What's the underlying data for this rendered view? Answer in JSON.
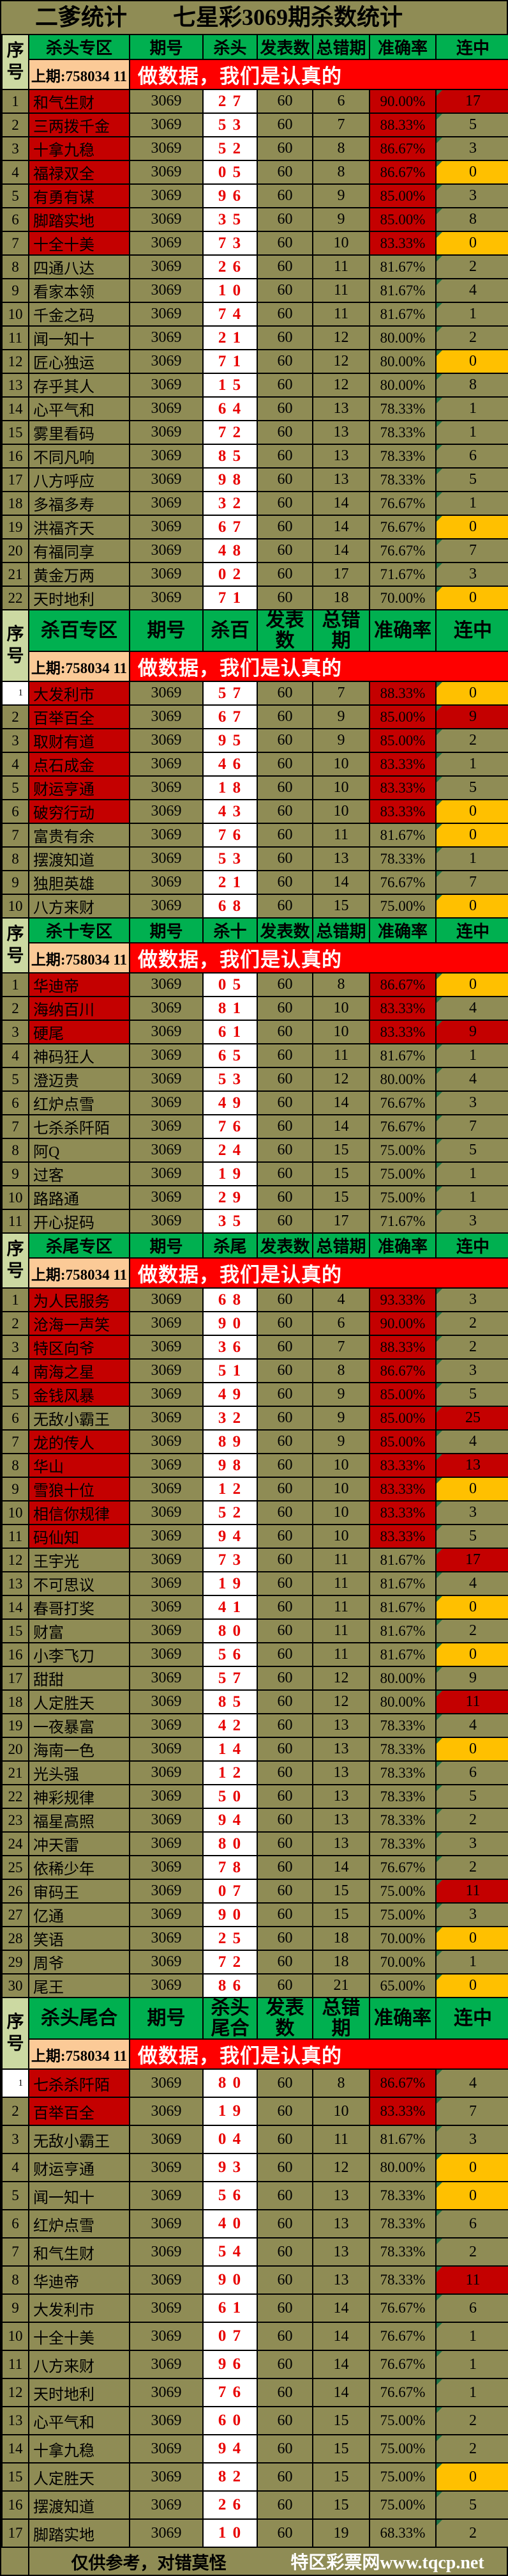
{
  "title": "二爹统计　　七星彩3069期杀数统计",
  "headers": {
    "no": "序\n号",
    "period": "期号",
    "published": "发表数",
    "errors": "总错期",
    "accuracy": "准确率",
    "streak": "连中"
  },
  "prev_draw": "上期:758034 11",
  "banner": "做数据，我们是认真的",
  "row_format": "[no, name, period, kill, published, errors, accuracy, streak, flags] — flags: N=name red bg, A=accuracy red bg, r=streak red bg, y=streak yellow bg, W=white serial cell",
  "colors": {
    "olive": "#8f8c55",
    "green": "#00b050",
    "palegreen": "#ccd9a2",
    "peach": "#fbca97",
    "bannerred": "#fe0000",
    "cellred": "#c40000",
    "yellow": "#ffc000",
    "killred": "#e80000",
    "trigreen": "#1e7145"
  },
  "sections": [
    {
      "zone": "杀头专区",
      "kill": "杀头",
      "rows": [
        [
          1,
          "和气生财",
          "3069",
          "2 7",
          "60",
          "6",
          "90.00%",
          "17",
          "NAr"
        ],
        [
          2,
          "三两拨千金",
          "3069",
          "5 3",
          "60",
          "7",
          "88.33%",
          "5",
          "NA"
        ],
        [
          3,
          "十拿九稳",
          "3069",
          "5 2",
          "60",
          "8",
          "86.67%",
          "3",
          "NA"
        ],
        [
          4,
          "福禄双全",
          "3069",
          "0 5",
          "60",
          "8",
          "86.67%",
          "0",
          "NAy"
        ],
        [
          5,
          "有勇有谋",
          "3069",
          "9 6",
          "60",
          "9",
          "85.00%",
          "3",
          "NA"
        ],
        [
          6,
          "脚踏实地",
          "3069",
          "3 5",
          "60",
          "9",
          "85.00%",
          "8",
          "NA"
        ],
        [
          7,
          "十全十美",
          "3069",
          "7 3",
          "60",
          "10",
          "83.33%",
          "0",
          "NAy"
        ],
        [
          8,
          "四通八达",
          "3069",
          "2 6",
          "60",
          "11",
          "81.67%",
          "2",
          ""
        ],
        [
          9,
          "看家本领",
          "3069",
          "1 0",
          "60",
          "11",
          "81.67%",
          "4",
          ""
        ],
        [
          10,
          "千金之码",
          "3069",
          "7 4",
          "60",
          "11",
          "81.67%",
          "1",
          ""
        ],
        [
          11,
          "闻一知十",
          "3069",
          "2 1",
          "60",
          "12",
          "80.00%",
          "2",
          ""
        ],
        [
          12,
          "匠心独运",
          "3069",
          "7 1",
          "60",
          "12",
          "80.00%",
          "0",
          "y"
        ],
        [
          13,
          "存乎其人",
          "3069",
          "1 5",
          "60",
          "12",
          "80.00%",
          "8",
          ""
        ],
        [
          14,
          "心平气和",
          "3069",
          "6 4",
          "60",
          "13",
          "78.33%",
          "1",
          ""
        ],
        [
          15,
          "雾里看码",
          "3069",
          "7 2",
          "60",
          "13",
          "78.33%",
          "1",
          ""
        ],
        [
          16,
          "不同凡响",
          "3069",
          "8 5",
          "60",
          "13",
          "78.33%",
          "6",
          ""
        ],
        [
          17,
          "八方呼应",
          "3069",
          "9 8",
          "60",
          "13",
          "78.33%",
          "5",
          ""
        ],
        [
          18,
          "多福多寿",
          "3069",
          "3 2",
          "60",
          "14",
          "76.67%",
          "1",
          ""
        ],
        [
          19,
          "洪福齐天",
          "3069",
          "6 7",
          "60",
          "14",
          "76.67%",
          "0",
          "y"
        ],
        [
          20,
          "有福同享",
          "3069",
          "4 8",
          "60",
          "14",
          "76.67%",
          "7",
          ""
        ],
        [
          21,
          "黄金万两",
          "3069",
          "0 2",
          "60",
          "17",
          "71.67%",
          "3",
          ""
        ],
        [
          22,
          "天时地利",
          "3069",
          "7 1",
          "60",
          "18",
          "70.00%",
          "0",
          "y"
        ]
      ]
    },
    {
      "zone": "杀百专区",
      "kill": "杀百",
      "rows": [
        [
          1,
          "大发利市",
          "3069",
          "5 7",
          "60",
          "7",
          "88.33%",
          "0",
          "NAyW"
        ],
        [
          2,
          "百举百全",
          "3069",
          "6 7",
          "60",
          "9",
          "85.00%",
          "9",
          "NAr"
        ],
        [
          3,
          "取财有道",
          "3069",
          "9 5",
          "60",
          "9",
          "85.00%",
          "2",
          "NA"
        ],
        [
          4,
          "点石成金",
          "3069",
          "4 6",
          "60",
          "10",
          "83.33%",
          "1",
          "NA"
        ],
        [
          5,
          "财运亨通",
          "3069",
          "1 8",
          "60",
          "10",
          "83.33%",
          "5",
          "NA"
        ],
        [
          6,
          "破穷行动",
          "3069",
          "4 3",
          "60",
          "10",
          "83.33%",
          "0",
          "NAy"
        ],
        [
          7,
          "富贵有余",
          "3069",
          "7 6",
          "60",
          "11",
          "81.67%",
          "0",
          "y"
        ],
        [
          8,
          "摆渡知道",
          "3069",
          "5 3",
          "60",
          "13",
          "78.33%",
          "1",
          ""
        ],
        [
          9,
          "独胆英雄",
          "3069",
          "2 1",
          "60",
          "14",
          "76.67%",
          "7",
          ""
        ],
        [
          10,
          "八方来财",
          "3069",
          "6 8",
          "60",
          "15",
          "75.00%",
          "0",
          "y"
        ]
      ]
    },
    {
      "zone": "杀十专区",
      "kill": "杀十",
      "rows": [
        [
          1,
          "华迪帝",
          "3069",
          "0 5",
          "60",
          "8",
          "86.67%",
          "0",
          "NAy"
        ],
        [
          2,
          "海纳百川",
          "3069",
          "8 1",
          "60",
          "10",
          "83.33%",
          "4",
          "NA"
        ],
        [
          3,
          "硬尾",
          "3069",
          "6 1",
          "60",
          "10",
          "83.33%",
          "9",
          "NAr"
        ],
        [
          4,
          "神码狂人",
          "3069",
          "6 5",
          "60",
          "11",
          "81.67%",
          "1",
          ""
        ],
        [
          5,
          "澄迈贵",
          "3069",
          "5 3",
          "60",
          "12",
          "80.00%",
          "4",
          ""
        ],
        [
          6,
          "红炉点雪",
          "3069",
          "4 9",
          "60",
          "14",
          "76.67%",
          "3",
          ""
        ],
        [
          7,
          "七杀杀阡陌",
          "3069",
          "7 6",
          "60",
          "14",
          "76.67%",
          "7",
          ""
        ],
        [
          8,
          "阿Q",
          "3069",
          "2 4",
          "60",
          "15",
          "75.00%",
          "5",
          ""
        ],
        [
          9,
          "过客",
          "3069",
          "1 9",
          "60",
          "15",
          "75.00%",
          "1",
          ""
        ],
        [
          10,
          "路路通",
          "3069",
          "2 9",
          "60",
          "15",
          "75.00%",
          "1",
          ""
        ],
        [
          11,
          "开心捉码",
          "3069",
          "3 5",
          "60",
          "17",
          "71.67%",
          "3",
          ""
        ]
      ]
    },
    {
      "zone": "杀尾专区",
      "kill": "杀尾",
      "rows": [
        [
          1,
          "为人民服务",
          "3069",
          "6 8",
          "60",
          "4",
          "93.33%",
          "3",
          "NA"
        ],
        [
          2,
          "沧海一声笑",
          "3069",
          "9 0",
          "60",
          "6",
          "90.00%",
          "2",
          "NA"
        ],
        [
          3,
          "特区向爷",
          "3069",
          "3 6",
          "60",
          "7",
          "88.33%",
          "2",
          "NA"
        ],
        [
          4,
          "南海之星",
          "3069",
          "5 1",
          "60",
          "8",
          "86.67%",
          "3",
          "NA"
        ],
        [
          5,
          "金钱风暴",
          "3069",
          "4 9",
          "60",
          "9",
          "85.00%",
          "5",
          "NA"
        ],
        [
          6,
          "无敌小霸王",
          "3069",
          "3 2",
          "60",
          "9",
          "85.00%",
          "25",
          "Ar"
        ],
        [
          7,
          "龙的传人",
          "3069",
          "8 9",
          "60",
          "9",
          "85.00%",
          "4",
          "NA"
        ],
        [
          8,
          "华山",
          "3069",
          "9 8",
          "60",
          "10",
          "83.33%",
          "13",
          "NAr"
        ],
        [
          9,
          "雪狼十位",
          "3069",
          "1 2",
          "60",
          "10",
          "83.33%",
          "0",
          "NAy"
        ],
        [
          10,
          "相信你规律",
          "3069",
          "5 2",
          "60",
          "10",
          "83.33%",
          "3",
          "NA"
        ],
        [
          11,
          "码仙知",
          "3069",
          "9 4",
          "60",
          "10",
          "83.33%",
          "5",
          "NA"
        ],
        [
          12,
          "王宇光",
          "3069",
          "7 3",
          "60",
          "11",
          "81.67%",
          "17",
          "r"
        ],
        [
          13,
          "不可思议",
          "3069",
          "1 9",
          "60",
          "11",
          "81.67%",
          "4",
          ""
        ],
        [
          14,
          "春哥打奖",
          "3069",
          "4 1",
          "60",
          "11",
          "81.67%",
          "0",
          "y"
        ],
        [
          15,
          "财富",
          "3069",
          "8 0",
          "60",
          "11",
          "81.67%",
          "2",
          ""
        ],
        [
          16,
          "小李飞刀",
          "3069",
          "5 6",
          "60",
          "11",
          "81.67%",
          "0",
          "y"
        ],
        [
          17,
          "甜甜",
          "3069",
          "5 7",
          "60",
          "12",
          "80.00%",
          "9",
          ""
        ],
        [
          18,
          "人定胜天",
          "3069",
          "8 5",
          "60",
          "12",
          "80.00%",
          "11",
          "r"
        ],
        [
          19,
          "一夜暴富",
          "3069",
          "4 2",
          "60",
          "13",
          "78.33%",
          "4",
          ""
        ],
        [
          20,
          "海南一色",
          "3069",
          "1 4",
          "60",
          "13",
          "78.33%",
          "0",
          "y"
        ],
        [
          21,
          "光头强",
          "3069",
          "1 2",
          "60",
          "13",
          "78.33%",
          "6",
          ""
        ],
        [
          22,
          "神彩规律",
          "3069",
          "5 0",
          "60",
          "13",
          "78.33%",
          "5",
          ""
        ],
        [
          23,
          "福星高照",
          "3069",
          "9 4",
          "60",
          "13",
          "78.33%",
          "2",
          ""
        ],
        [
          24,
          "冲天雷",
          "3069",
          "8 0",
          "60",
          "13",
          "78.33%",
          "3",
          ""
        ],
        [
          25,
          "依稀少年",
          "3069",
          "7 8",
          "60",
          "14",
          "76.67%",
          "2",
          ""
        ],
        [
          26,
          "审码王",
          "3069",
          "0 7",
          "60",
          "15",
          "75.00%",
          "11",
          "r"
        ],
        [
          27,
          "亿通",
          "3069",
          "9 0",
          "60",
          "15",
          "75.00%",
          "3",
          ""
        ],
        [
          28,
          "笑语",
          "3069",
          "2 5",
          "60",
          "18",
          "70.00%",
          "0",
          "y"
        ],
        [
          29,
          "周爷",
          "3069",
          "7 2",
          "60",
          "18",
          "70.00%",
          "1",
          ""
        ],
        [
          30,
          "尾王",
          "3069",
          "8 6",
          "60",
          "21",
          "65.00%",
          "0",
          "y"
        ]
      ]
    },
    {
      "zone": "杀头尾合",
      "kill": "杀头尾合",
      "rows": [
        [
          1,
          "七杀杀阡陌",
          "3069",
          "8 0",
          "60",
          "8",
          "86.67%",
          "4",
          "NAW"
        ],
        [
          2,
          "百举百全",
          "3069",
          "1 9",
          "60",
          "10",
          "83.33%",
          "7",
          "NA"
        ],
        [
          3,
          "无敌小霸王",
          "3069",
          "0 4",
          "60",
          "11",
          "81.67%",
          "3",
          ""
        ],
        [
          4,
          "财运亨通",
          "3069",
          "9 3",
          "60",
          "12",
          "80.00%",
          "0",
          "y"
        ],
        [
          5,
          "闻一知十",
          "3069",
          "5 6",
          "60",
          "13",
          "78.33%",
          "0",
          "y"
        ],
        [
          6,
          "红炉点雪",
          "3069",
          "4 0",
          "60",
          "13",
          "78.33%",
          "6",
          ""
        ],
        [
          7,
          "和气生财",
          "3069",
          "5 4",
          "60",
          "13",
          "78.33%",
          "2",
          ""
        ],
        [
          8,
          "华迪帝",
          "3069",
          "9 0",
          "60",
          "13",
          "78.33%",
          "11",
          "r"
        ],
        [
          9,
          "大发利市",
          "3069",
          "6 1",
          "60",
          "14",
          "76.67%",
          "6",
          ""
        ],
        [
          10,
          "十全十美",
          "3069",
          "0 7",
          "60",
          "14",
          "76.67%",
          "1",
          ""
        ],
        [
          11,
          "八方来财",
          "3069",
          "9 6",
          "60",
          "14",
          "76.67%",
          "1",
          ""
        ],
        [
          12,
          "天时地利",
          "3069",
          "7 6",
          "60",
          "14",
          "76.67%",
          "1",
          ""
        ],
        [
          13,
          "心平气和",
          "3069",
          "6 0",
          "60",
          "15",
          "75.00%",
          "2",
          ""
        ],
        [
          14,
          "十拿九稳",
          "3069",
          "9 4",
          "60",
          "15",
          "75.00%",
          "2",
          ""
        ],
        [
          15,
          "人定胜天",
          "3069",
          "8 2",
          "60",
          "15",
          "75.00%",
          "0",
          "y"
        ],
        [
          16,
          "摆渡知道",
          "3069",
          "2 6",
          "60",
          "15",
          "75.00%",
          "5",
          ""
        ],
        [
          17,
          "脚踏实地",
          "3069",
          "1 0",
          "60",
          "19",
          "68.33%",
          "2",
          ""
        ]
      ]
    }
  ],
  "footer": {
    "note": "仅供参考，对错莫怪",
    "site": "特区彩票网www.tqcp.net"
  }
}
